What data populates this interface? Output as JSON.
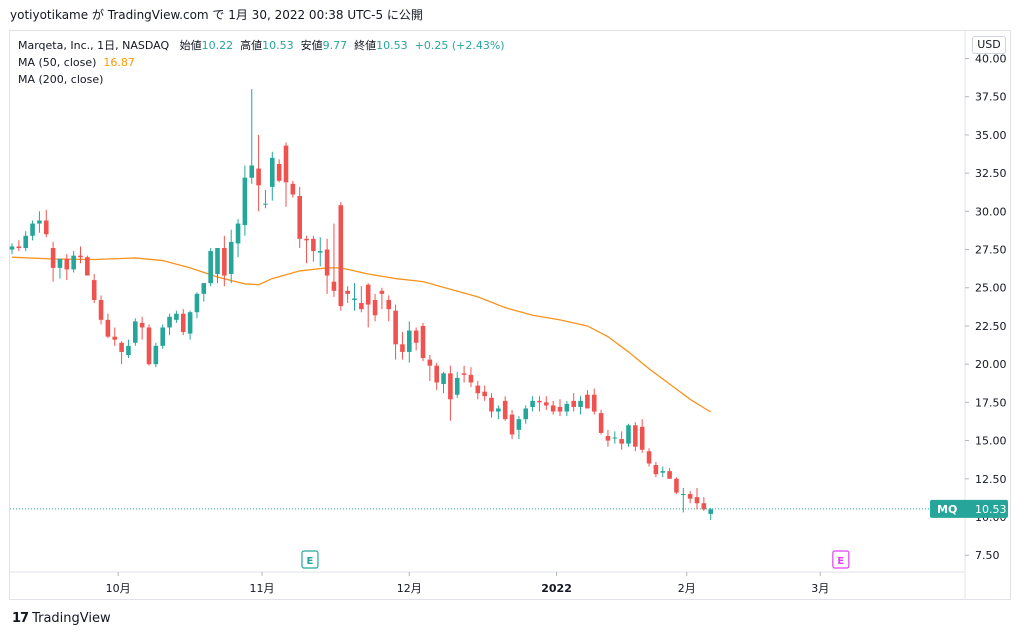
{
  "header": {
    "attribution": "yotiyotikame が TradingView.com で 1月 30, 2022 00:38 UTC-5 に公開"
  },
  "legend": {
    "instrument": "Marqeta, Inc., 1日, NASDAQ",
    "open_label": "始値",
    "open_value": "10.22",
    "high_label": "高値",
    "high_value": "10.53",
    "low_label": "安値",
    "low_value": "9.77",
    "close_label": "終値",
    "close_value": "10.53",
    "change": "+0.25 (+2.43%)",
    "ma50_label": "MA (50, close)",
    "ma50_value": "16.87",
    "ma200_label": "MA (200, close)"
  },
  "currency": "USD",
  "footer": {
    "logo_mark": "17",
    "logo_text": "TradingView"
  },
  "colors": {
    "up": "#26a69a",
    "down": "#ef5350",
    "ma50": "#f7931e",
    "earnings": "#26a69a",
    "earnings_future": "#e040fb",
    "price_label": "#26a69a"
  },
  "chart_data": {
    "type": "candlestick",
    "symbol": "MQ",
    "last_price": "10.53",
    "y_ticks": [
      "7.50",
      "10.00",
      "12.50",
      "15.00",
      "17.50",
      "20.00",
      "22.50",
      "25.00",
      "27.50",
      "30.00",
      "32.50",
      "35.00",
      "37.50",
      "40.00"
    ],
    "ylim": [
      6.4,
      41.8
    ],
    "x_ticks": [
      {
        "label": "10月",
        "t": 15.5
      },
      {
        "label": "11月",
        "t": 36.5
      },
      {
        "label": "12月",
        "t": 58
      },
      {
        "label": "2022",
        "t": 79.5
      },
      {
        "label": "2月",
        "t": 98.5
      },
      {
        "label": "3月",
        "t": 118
      }
    ],
    "earnings_markers": [
      {
        "label": "E",
        "t": 43.5,
        "kind": "past"
      },
      {
        "label": "E",
        "t": 121,
        "kind": "future"
      }
    ],
    "candles": [
      [
        27.5,
        27.9,
        27.2,
        27.7
      ],
      [
        27.7,
        28.1,
        27.4,
        27.6
      ],
      [
        27.6,
        28.7,
        27.4,
        28.4
      ],
      [
        28.4,
        29.4,
        28.1,
        29.2
      ],
      [
        29.2,
        30.0,
        28.6,
        29.4
      ],
      [
        29.4,
        30.1,
        28.3,
        28.5
      ],
      [
        27.6,
        28.0,
        25.4,
        26.3
      ],
      [
        26.3,
        26.8,
        25.6,
        26.9
      ],
      [
        26.9,
        27.2,
        25.5,
        26.2
      ],
      [
        26.2,
        27.4,
        26.0,
        27.1
      ],
      [
        27.1,
        27.7,
        26.6,
        27.0
      ],
      [
        27.0,
        27.1,
        25.8,
        25.8
      ],
      [
        25.5,
        25.9,
        24.0,
        24.2
      ],
      [
        24.2,
        24.5,
        22.6,
        22.9
      ],
      [
        22.9,
        23.3,
        21.7,
        21.8
      ],
      [
        21.8,
        22.4,
        21.2,
        21.6
      ],
      [
        21.4,
        21.5,
        20.0,
        20.8
      ],
      [
        20.6,
        21.6,
        20.4,
        21.2
      ],
      [
        21.4,
        23.0,
        21.2,
        22.8
      ],
      [
        22.7,
        23.1,
        21.6,
        22.4
      ],
      [
        22.4,
        22.6,
        19.9,
        20.0
      ],
      [
        20.0,
        21.4,
        19.8,
        21.2
      ],
      [
        21.2,
        22.6,
        21.0,
        22.4
      ],
      [
        22.4,
        23.3,
        21.9,
        23.1
      ],
      [
        22.9,
        23.5,
        22.7,
        23.3
      ],
      [
        23.3,
        23.6,
        21.9,
        22.1
      ],
      [
        22.0,
        23.5,
        21.6,
        23.4
      ],
      [
        23.4,
        24.7,
        23.0,
        24.6
      ],
      [
        24.6,
        25.3,
        24.1,
        25.3
      ],
      [
        25.3,
        27.6,
        25.1,
        27.4
      ],
      [
        25.9,
        27.6,
        25.3,
        27.6
      ],
      [
        27.6,
        28.4,
        25.1,
        25.8
      ],
      [
        25.9,
        28.8,
        25.3,
        28.0
      ],
      [
        27.9,
        29.5,
        27.0,
        29.2
      ],
      [
        29.1,
        33.0,
        28.4,
        32.2
      ],
      [
        32.2,
        38.0,
        31.8,
        33.0
      ],
      [
        32.8,
        35.0,
        30.0,
        31.7
      ],
      [
        30.5,
        31.4,
        30.2,
        30.5
      ],
      [
        31.6,
        33.9,
        30.7,
        33.5
      ],
      [
        33.1,
        33.4,
        31.9,
        32.0
      ],
      [
        34.3,
        34.5,
        30.3,
        31.9
      ],
      [
        31.8,
        32.0,
        30.9,
        31.1
      ],
      [
        31.0,
        31.6,
        27.6,
        28.2
      ],
      [
        28.2,
        28.4,
        26.6,
        28.1
      ],
      [
        28.2,
        28.4,
        26.7,
        27.4
      ],
      [
        27.3,
        28.3,
        26.4,
        27.4
      ],
      [
        27.5,
        28.2,
        24.6,
        25.8
      ],
      [
        25.4,
        29.2,
        24.4,
        24.8
      ],
      [
        30.4,
        30.6,
        23.5,
        23.8
      ],
      [
        24.8,
        25.1,
        24.0,
        24.6
      ],
      [
        24.2,
        25.3,
        23.5,
        24.3
      ],
      [
        24.0,
        25.1,
        23.4,
        23.6
      ],
      [
        25.2,
        25.3,
        22.4,
        23.9
      ],
      [
        24.2,
        24.6,
        22.8,
        23.2
      ],
      [
        24.8,
        25.0,
        23.6,
        24.6
      ],
      [
        24.2,
        24.5,
        22.8,
        23.6
      ],
      [
        23.5,
        23.9,
        20.3,
        21.3
      ],
      [
        21.3,
        22.1,
        20.3,
        20.8
      ],
      [
        20.8,
        22.8,
        20.1,
        22.2
      ],
      [
        22.2,
        22.4,
        20.9,
        21.4
      ],
      [
        22.5,
        22.7,
        20.2,
        20.4
      ],
      [
        20.3,
        20.6,
        18.9,
        19.9
      ],
      [
        19.9,
        20.1,
        18.3,
        18.8
      ],
      [
        18.7,
        19.5,
        18.1,
        19.4
      ],
      [
        19.4,
        19.9,
        16.3,
        17.7
      ],
      [
        18.0,
        19.5,
        17.8,
        19.1
      ],
      [
        19.4,
        19.9,
        18.8,
        19.3
      ],
      [
        19.3,
        19.8,
        18.5,
        18.8
      ],
      [
        18.6,
        18.9,
        17.7,
        18.1
      ],
      [
        18.2,
        18.6,
        17.6,
        17.9
      ],
      [
        17.8,
        18.1,
        16.5,
        16.9
      ],
      [
        16.9,
        17.3,
        16.4,
        17.1
      ],
      [
        17.6,
        17.9,
        16.3,
        16.4
      ],
      [
        16.7,
        17.0,
        15.1,
        15.4
      ],
      [
        15.7,
        16.6,
        15.1,
        16.4
      ],
      [
        16.4,
        17.3,
        16.1,
        17.1
      ],
      [
        17.2,
        17.9,
        16.9,
        17.6
      ],
      [
        17.6,
        17.9,
        16.9,
        17.5
      ],
      [
        17.5,
        17.9,
        17.0,
        17.3
      ],
      [
        17.3,
        17.6,
        16.7,
        16.9
      ],
      [
        17.2,
        17.7,
        16.6,
        16.9
      ],
      [
        16.9,
        17.6,
        16.6,
        17.4
      ],
      [
        17.6,
        18.1,
        16.9,
        17.2
      ],
      [
        17.2,
        17.9,
        16.7,
        17.6
      ],
      [
        18.0,
        18.3,
        17.1,
        17.1
      ],
      [
        18.0,
        18.4,
        16.7,
        16.9
      ],
      [
        16.8,
        17.0,
        15.4,
        15.5
      ],
      [
        15.3,
        15.7,
        14.6,
        15.0
      ],
      [
        15.2,
        15.6,
        14.8,
        15.2
      ],
      [
        15.1,
        15.6,
        14.4,
        14.8
      ],
      [
        14.8,
        16.1,
        14.6,
        16.0
      ],
      [
        16.0,
        16.2,
        14.3,
        14.6
      ],
      [
        15.9,
        16.4,
        14.2,
        14.4
      ],
      [
        14.3,
        14.5,
        13.3,
        13.5
      ],
      [
        13.4,
        13.6,
        12.6,
        12.8
      ],
      [
        12.9,
        13.3,
        12.6,
        13.0
      ],
      [
        13.0,
        13.2,
        12.5,
        12.5
      ],
      [
        12.5,
        12.6,
        11.5,
        11.6
      ],
      [
        11.5,
        11.9,
        10.3,
        11.5
      ],
      [
        11.5,
        11.7,
        10.9,
        11.2
      ],
      [
        11.3,
        11.9,
        10.5,
        10.9
      ],
      [
        10.9,
        11.3,
        10.4,
        10.5
      ],
      [
        10.2,
        10.6,
        9.8,
        10.5
      ]
    ],
    "ma50": [
      [
        0,
        27.0
      ],
      [
        6,
        26.88
      ],
      [
        12,
        26.85
      ],
      [
        18,
        26.95
      ],
      [
        22,
        26.78
      ],
      [
        26,
        26.3
      ],
      [
        30,
        25.7
      ],
      [
        34,
        25.25
      ],
      [
        36,
        25.2
      ],
      [
        38,
        25.6
      ],
      [
        42,
        26.1
      ],
      [
        46,
        26.3
      ],
      [
        48,
        26.3
      ],
      [
        52,
        25.9
      ],
      [
        56,
        25.6
      ],
      [
        60,
        25.4
      ],
      [
        64,
        24.9
      ],
      [
        68,
        24.4
      ],
      [
        72,
        23.7
      ],
      [
        76,
        23.2
      ],
      [
        80,
        22.9
      ],
      [
        84,
        22.5
      ],
      [
        87,
        21.8
      ],
      [
        90,
        20.8
      ],
      [
        93,
        19.7
      ],
      [
        96,
        18.7
      ],
      [
        99,
        17.7
      ],
      [
        102,
        16.87
      ]
    ]
  }
}
